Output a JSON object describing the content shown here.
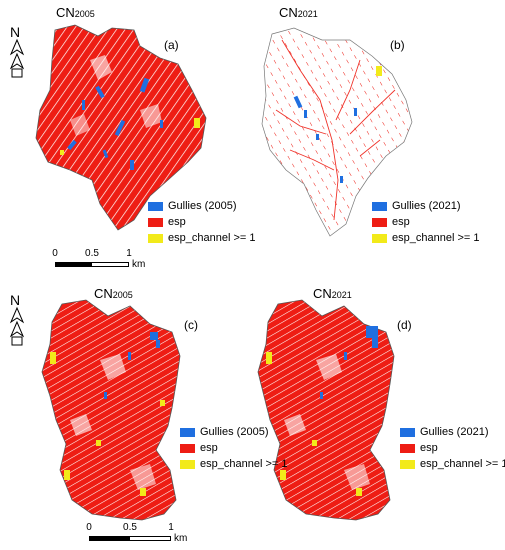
{
  "panels": [
    {
      "title_main": "CN",
      "title_sub": "2005",
      "label": "(a)"
    },
    {
      "title_main": "CN",
      "title_sub": "2021",
      "label": "(b)"
    },
    {
      "title_main": "CN",
      "title_sub": "2005",
      "label": "(c)"
    },
    {
      "title_main": "CN",
      "title_sub": "2021",
      "label": "(d)"
    }
  ],
  "legends": [
    {
      "items": [
        {
          "label": "Gullies (2005)",
          "color": "#1f6fe0"
        },
        {
          "label": "esp",
          "color": "#ee1d14"
        },
        {
          "label": "esp_channel >= 1",
          "color": "#f2ea1a"
        }
      ]
    },
    {
      "items": [
        {
          "label": "Gullies (2021)",
          "color": "#1f6fe0"
        },
        {
          "label": "esp",
          "color": "#ee1d14"
        },
        {
          "label": "esp_channel >= 1",
          "color": "#f2ea1a"
        }
      ]
    },
    {
      "items": [
        {
          "label": "Gullies (2005)",
          "color": "#1f6fe0"
        },
        {
          "label": "esp",
          "color": "#ee1d14"
        },
        {
          "label": "esp_channel >= 1",
          "color": "#f2ea1a"
        }
      ]
    },
    {
      "items": [
        {
          "label": "Gullies (2021)",
          "color": "#1f6fe0"
        },
        {
          "label": "esp",
          "color": "#ee1d14"
        },
        {
          "label": "esp_channel >= 1",
          "color": "#f2ea1a"
        }
      ]
    }
  ],
  "scalebars": [
    {
      "ticks": [
        "0",
        "0.5",
        "1"
      ],
      "unit": "km"
    },
    {
      "ticks": [
        "0",
        "0.5",
        "1"
      ],
      "unit": "km"
    }
  ],
  "north_arrow": {
    "letter": "N",
    "icon": "north-arrow-icon"
  }
}
